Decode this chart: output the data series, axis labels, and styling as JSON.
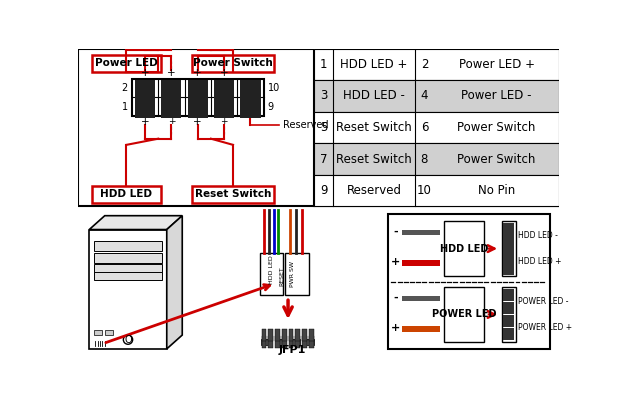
{
  "bg_color": "#ffffff",
  "red_color": "#cc0000",
  "gray_row_color": "#d0d0d0",
  "table_rows": [
    {
      "num1": "1",
      "label1": "HDD LED +",
      "num2": "2",
      "label2": "Power LED +",
      "shaded": false
    },
    {
      "num1": "3",
      "label1": "HDD LED -",
      "num2": "4",
      "label2": "Power LED -",
      "shaded": true
    },
    {
      "num1": "5",
      "label1": "Reset Switch",
      "num2": "6",
      "label2": "Power Switch",
      "shaded": false
    },
    {
      "num1": "7",
      "label1": "Reset Switch",
      "num2": "8",
      "label2": "Power Switch",
      "shaded": true
    },
    {
      "num1": "9",
      "label1": "Reserved",
      "num2": "10",
      "label2": "No Pin",
      "shaded": false
    }
  ],
  "top_labels": [
    "Power LED",
    "Power Switch"
  ],
  "bottom_labels": [
    "HDD LED",
    "Reset Switch"
  ],
  "reserved_label": "Reserved",
  "jfp1_label": "JFP1",
  "hdd_led_label": "HDD LED",
  "power_led_label": "POWER LED",
  "hdd_led_minus": "HDD LED -",
  "hdd_led_plus": "HDD LED +",
  "power_led_minus": "POWER LED -",
  "power_led_plus": "POWER LED +"
}
